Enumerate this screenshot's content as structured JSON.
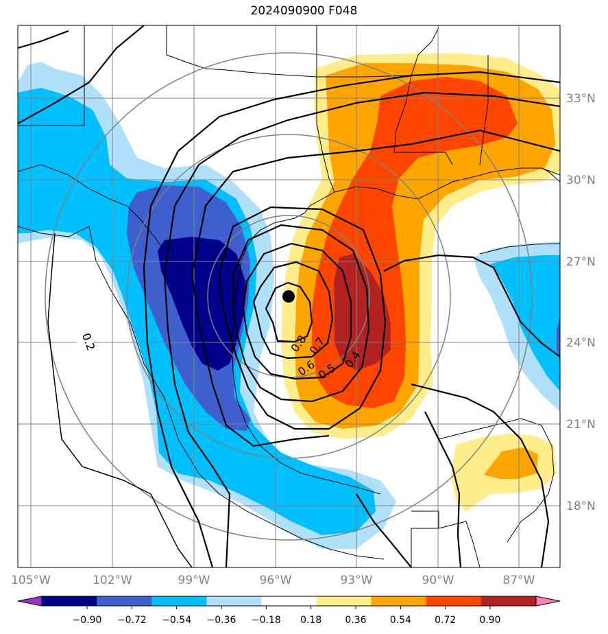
{
  "title": "2024090900 F048",
  "map": {
    "lon_labels": [
      "105°W",
      "102°W",
      "99°W",
      "96°W",
      "93°W",
      "90°W",
      "87°W"
    ],
    "lat_labels": [
      "33°N",
      "30°N",
      "27°N",
      "24°N",
      "21°N",
      "18°N"
    ],
    "contour_labels": [
      "0.2",
      "0.8",
      "0.7",
      "0.6",
      "0.5",
      "0.4"
    ],
    "center_marker": "storm-center",
    "colors": {
      "dark_navy": "#00008b",
      "royal_blue": "#3f5fcf",
      "deep_sky": "#00bfff",
      "light_blue": "#b0e0fa",
      "light_yellow": "#ffec8b",
      "orange": "#ffa500",
      "orange_red": "#ff4500",
      "firebrick": "#b22222",
      "pink": "#ff82b4",
      "purple": "#9932cc"
    }
  },
  "colorbar": {
    "ticks": [
      "−0.90",
      "−0.72",
      "−0.54",
      "−0.36",
      "−0.18",
      "0.18",
      "0.36",
      "0.54",
      "0.72",
      "0.90"
    ],
    "colors": [
      "#00008b",
      "#3f5fcf",
      "#00bfff",
      "#b0e0fa",
      "#ffffff",
      "#ffec8b",
      "#ffa500",
      "#ff4500",
      "#b22222"
    ],
    "under_color": "#9932cc",
    "over_color": "#ff82b4"
  }
}
